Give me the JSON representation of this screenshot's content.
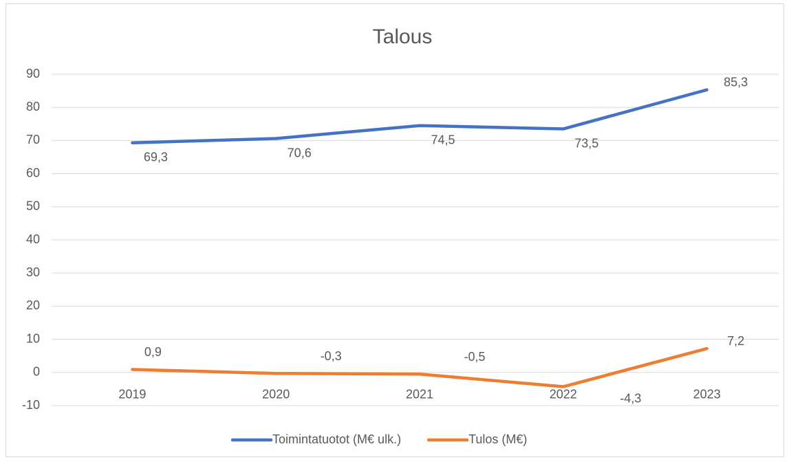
{
  "chart_data": {
    "type": "line",
    "title": "Talous",
    "categories": [
      "2019",
      "2020",
      "2021",
      "2022",
      "2023"
    ],
    "series": [
      {
        "name": "Toimintatuotot (M€ ulk.)",
        "color": "#4472c4",
        "values": [
          69.3,
          70.6,
          74.5,
          73.5,
          85.3
        ],
        "value_labels": [
          "69,3",
          "70,6",
          "74,5",
          "73,5",
          "85,3"
        ]
      },
      {
        "name": "Tulos (M€)",
        "color": "#ed7d31",
        "values": [
          0.9,
          -0.3,
          -0.5,
          -4.3,
          7.2
        ],
        "value_labels": [
          "0,9",
          "-0,3",
          "-0,5",
          "-4,3",
          "7,2"
        ]
      }
    ],
    "ylim": [
      -10,
      90
    ],
    "yticks": [
      -10,
      0,
      10,
      20,
      30,
      40,
      50,
      60,
      70,
      80,
      90
    ],
    "grid": true,
    "legend": "bottom"
  }
}
